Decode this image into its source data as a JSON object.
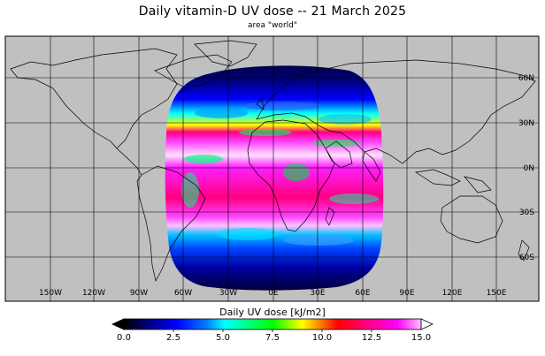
{
  "title": "Daily vitamin-D UV dose  --  21 March 2025",
  "subtitle": "area \"world\"",
  "map": {
    "lon_labels": [
      "150W",
      "120W",
      "90W",
      "60W",
      "30W",
      "0E",
      "30E",
      "60E",
      "90E",
      "120E",
      "150E"
    ],
    "lat_labels": [
      "60N",
      "30N",
      "0N",
      "30S",
      "60S"
    ],
    "land_color": "#c0c0c0",
    "ocean_color": "#c0c0c0"
  },
  "colorbar": {
    "title": "Daily UV dose  [kJ/m2]",
    "ticks": [
      "0.0",
      "2.5",
      "5.0",
      "7.5",
      "10.0",
      "12.5",
      "15.0"
    ],
    "range": [
      0,
      15
    ],
    "colors": [
      "#000000",
      "#00007a",
      "#0000ff",
      "#0080ff",
      "#00ffff",
      "#00ff80",
      "#00ff00",
      "#ffff00",
      "#ff8000",
      "#ff0000",
      "#ff0080",
      "#ff00ff",
      "#ffffff"
    ]
  }
}
